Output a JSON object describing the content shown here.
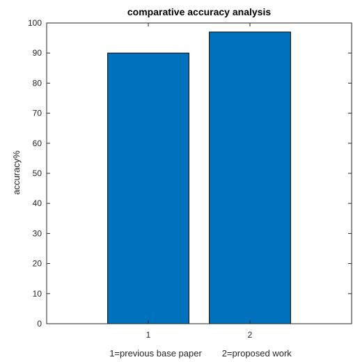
{
  "chart_data": {
    "type": "bar",
    "title": "comparative accuracy analysis",
    "ylabel": "accuracy%",
    "xlabel": "1=previous base paper        2=proposed work",
    "categories": [
      "1",
      "2"
    ],
    "values": [
      90,
      97
    ],
    "ylim": [
      0,
      100
    ],
    "xlim": [
      0,
      3
    ],
    "yticks": [
      0,
      10,
      20,
      30,
      40,
      50,
      60,
      70,
      80,
      90,
      100
    ],
    "bar_color": "#0072BD",
    "bar_edge_color": "#000000",
    "axis_color": "#262626",
    "grid": false
  }
}
